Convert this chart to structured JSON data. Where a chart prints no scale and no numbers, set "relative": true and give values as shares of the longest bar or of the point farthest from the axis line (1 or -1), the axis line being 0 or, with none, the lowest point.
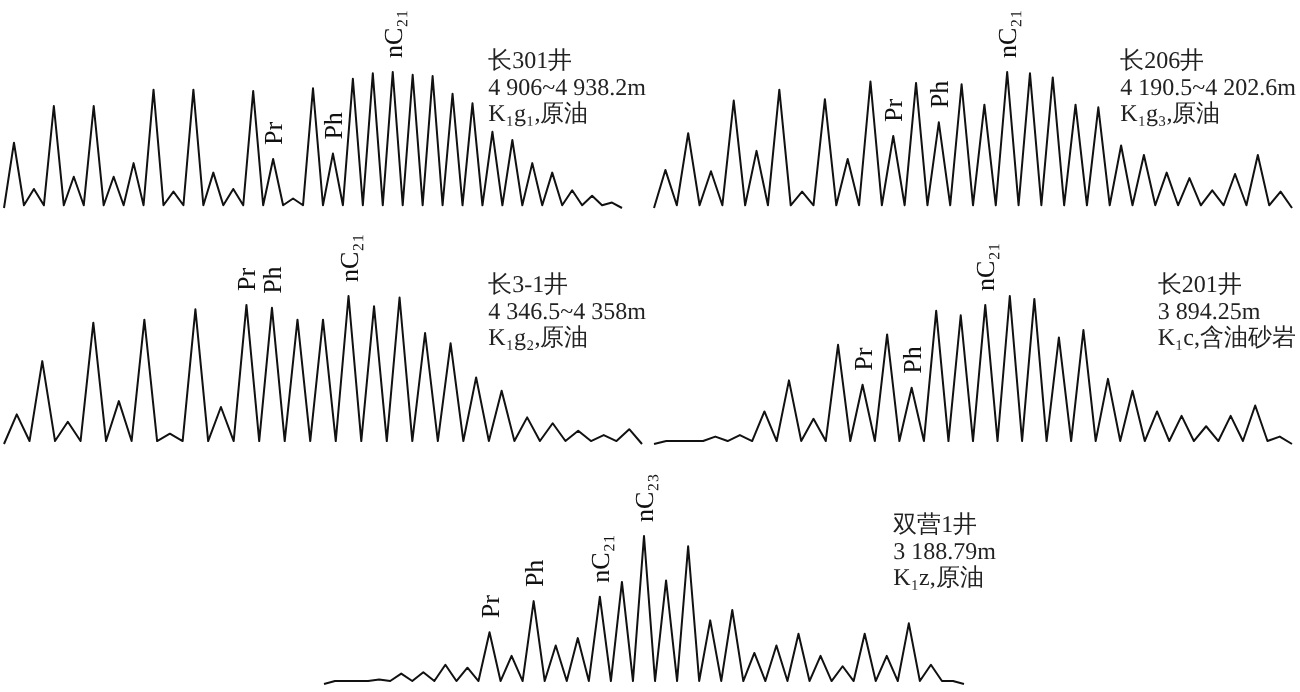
{
  "chart_data": [
    {
      "type": "line",
      "relative": true,
      "color": "#111111",
      "title": "长301井",
      "subtitle": "4 906~4 938.2m",
      "annotations": [
        "K₁g₁,原油",
        {
          "text": "Pr",
          "y": 0.36
        },
        {
          "text": "Ph",
          "y": 0.4
        },
        {
          "text": "nC₂₁",
          "y": 1
        }
      ],
      "categories": [
        null,
        null,
        null,
        null,
        null,
        null,
        null,
        null,
        null,
        null,
        null,
        null,
        null,
        null,
        null,
        null,
        null,
        null,
        null,
        null,
        null,
        null,
        null,
        null,
        null,
        null,
        null,
        null,
        null,
        null,
        null,
        null,
        null,
        null,
        null,
        null,
        null,
        null,
        null,
        null,
        null,
        null,
        null,
        null,
        null,
        null,
        null,
        null,
        null,
        null,
        null,
        null,
        null,
        null,
        null,
        null,
        null,
        null,
        null,
        null,
        null,
        null,
        null
      ],
      "values": [
        0,
        0.48,
        0.02,
        0.14,
        0.02,
        0.75,
        0.02,
        0.23,
        0.02,
        0.75,
        0.02,
        0.23,
        0.02,
        0.33,
        0.02,
        0.87,
        0.02,
        0.12,
        0.02,
        0.87,
        0.02,
        0.26,
        0.02,
        0.14,
        0.02,
        0.86,
        0.02,
        0.36,
        0.02,
        0.07,
        0.02,
        0.88,
        0.02,
        0.4,
        0.02,
        0.95,
        0.02,
        0.99,
        0.02,
        1,
        0.02,
        0.98,
        0.02,
        0.97,
        0.02,
        0.84,
        0.02,
        0.77,
        0.02,
        0.56,
        0.02,
        0.5,
        0.02,
        0.33,
        0.02,
        0.26,
        0.02,
        0.13,
        0.02,
        0.09,
        0.02,
        0.04,
        0
      ]
    },
    {
      "type": "line",
      "relative": true,
      "color": "#111111",
      "title": "长206井",
      "subtitle": "4 190.5~4 202.6m",
      "annotations": [
        "K₁g₃,原油",
        {
          "text": "Pr",
          "y": 0.53
        },
        {
          "text": "Ph",
          "y": 0.63
        },
        {
          "text": "nC₂₁",
          "y": 1
        }
      ],
      "categories": [
        null,
        null,
        null,
        null,
        null,
        null,
        null,
        null,
        null,
        null,
        null,
        null,
        null,
        null,
        null,
        null,
        null,
        null,
        null,
        null,
        null,
        null,
        null,
        null,
        null,
        null,
        null,
        null,
        null,
        null,
        null,
        null,
        null,
        null,
        null,
        null,
        null,
        null,
        null,
        null,
        null,
        null,
        null,
        null,
        null,
        null,
        null,
        null,
        null,
        null,
        null,
        null,
        null,
        null,
        null,
        null,
        null
      ],
      "values": [
        0,
        0.28,
        0.02,
        0.55,
        0.02,
        0.27,
        0.02,
        0.79,
        0.02,
        0.42,
        0.02,
        0.87,
        0.02,
        0.12,
        0.02,
        0.8,
        0.02,
        0.36,
        0.02,
        0.93,
        0.02,
        0.53,
        0.02,
        0.92,
        0.02,
        0.63,
        0.02,
        0.91,
        0.02,
        0.76,
        0.02,
        1,
        0.02,
        0.99,
        0.02,
        0.96,
        0.02,
        0.76,
        0.02,
        0.74,
        0.02,
        0.46,
        0.02,
        0.39,
        0.02,
        0.26,
        0.02,
        0.22,
        0.02,
        0.13,
        0.02,
        0.25,
        0.02,
        0.39,
        0.02,
        0.12,
        0
      ]
    },
    {
      "type": "line",
      "relative": true,
      "color": "#111111",
      "title": "长3-1井",
      "subtitle": "4 346.5~4 358m",
      "annotations": [
        "K₁g₂,原油",
        {
          "text": "Pr",
          "y": 0.94
        },
        {
          "text": "Ph",
          "y": 0.92
        },
        {
          "text": "nC₂₁",
          "y": 1
        }
      ],
      "categories": [
        null,
        null,
        null,
        null,
        null,
        null,
        null,
        null,
        null,
        null,
        null,
        null,
        null,
        null,
        null,
        null,
        null,
        null,
        null,
        null,
        null,
        null,
        null,
        null,
        null,
        null,
        null,
        null,
        null,
        null,
        null,
        null,
        null,
        null,
        null,
        null,
        null,
        null,
        null,
        null,
        null,
        null,
        null,
        null,
        null,
        null,
        null,
        null,
        null,
        null,
        null
      ],
      "values": [
        0,
        0.2,
        0.02,
        0.56,
        0.02,
        0.15,
        0.02,
        0.82,
        0.02,
        0.29,
        0.02,
        0.84,
        0.02,
        0.07,
        0.02,
        0.91,
        0.02,
        0.25,
        0.02,
        0.94,
        0.02,
        0.92,
        0.02,
        0.84,
        0.02,
        0.84,
        0.02,
        1,
        0.02,
        0.93,
        0.02,
        0.99,
        0.02,
        0.75,
        0.02,
        0.68,
        0.02,
        0.45,
        0.02,
        0.36,
        0.02,
        0.18,
        0.02,
        0.14,
        0.02,
        0.09,
        0.02,
        0.06,
        0.02,
        0.1,
        0
      ]
    },
    {
      "type": "line",
      "relative": true,
      "color": "#111111",
      "title": "长201井",
      "subtitle": "3 894.25m",
      "annotations": [
        "K₁c,含油砂岩",
        {
          "text": "Pr",
          "y": 0.4
        },
        {
          "text": "Ph",
          "y": 0.38
        },
        {
          "text": "nC₂₁",
          "y": 0.94
        }
      ],
      "categories": [
        null,
        null,
        null,
        null,
        null,
        null,
        null,
        null,
        null,
        null,
        null,
        null,
        null,
        null,
        null,
        null,
        null,
        null,
        null,
        null,
        null,
        null,
        null,
        null,
        null,
        null,
        null,
        null,
        null,
        null,
        null,
        null,
        null,
        null,
        null,
        null,
        null,
        null,
        null,
        null,
        null,
        null,
        null,
        null,
        null,
        null,
        null,
        null,
        null,
        null,
        null,
        null,
        null
      ],
      "values": [
        0,
        0.02,
        0.02,
        0.02,
        0.02,
        0.05,
        0.02,
        0.06,
        0.02,
        0.22,
        0.02,
        0.43,
        0.02,
        0.17,
        0.02,
        0.67,
        0.02,
        0.4,
        0.02,
        0.74,
        0.02,
        0.38,
        0.02,
        0.9,
        0.02,
        0.87,
        0.02,
        0.94,
        0.02,
        1,
        0.02,
        0.98,
        0.02,
        0.72,
        0.02,
        0.77,
        0.02,
        0.44,
        0.02,
        0.36,
        0.02,
        0.22,
        0.02,
        0.19,
        0.02,
        0.12,
        0.02,
        0.19,
        0.02,
        0.26,
        0.02,
        0.05,
        0
      ]
    },
    {
      "type": "line",
      "relative": true,
      "color": "#111111",
      "title": "双营1井",
      "subtitle": "3 188.79m",
      "annotations": [
        "K₁z,原油",
        {
          "text": "Pr",
          "y": 0.35
        },
        {
          "text": "Ph",
          "y": 0.56
        },
        {
          "text": "nC₂₁",
          "y": 0.59
        },
        {
          "text": "nC₂₃",
          "y": 1
        }
      ],
      "categories": [
        null,
        null,
        null,
        null,
        null,
        null,
        null,
        null,
        null,
        null,
        null,
        null,
        null,
        null,
        null,
        null,
        null,
        null,
        null,
        null,
        null,
        null,
        null,
        null,
        null,
        null,
        null,
        null,
        null,
        null,
        null,
        null,
        null,
        null,
        null,
        null,
        null,
        null,
        null,
        null,
        null,
        null,
        null,
        null,
        null,
        null,
        null,
        null,
        null,
        null,
        null,
        null,
        null,
        null,
        null,
        null,
        null,
        null,
        null
      ],
      "values": [
        0,
        0.02,
        0.02,
        0.02,
        0.02,
        0.03,
        0.02,
        0.07,
        0.02,
        0.08,
        0.02,
        0.13,
        0.02,
        0.11,
        0.02,
        0.35,
        0.02,
        0.19,
        0.02,
        0.56,
        0.02,
        0.26,
        0.02,
        0.31,
        0.02,
        0.59,
        0.02,
        0.69,
        0.02,
        1,
        0.02,
        0.7,
        0.02,
        0.93,
        0.02,
        0.43,
        0.02,
        0.5,
        0.02,
        0.21,
        0.02,
        0.26,
        0.02,
        0.34,
        0.02,
        0.19,
        0.02,
        0.12,
        0.02,
        0.34,
        0.02,
        0.19,
        0.02,
        0.41,
        0.02,
        0.13,
        0.02,
        0.02,
        0
      ]
    }
  ]
}
